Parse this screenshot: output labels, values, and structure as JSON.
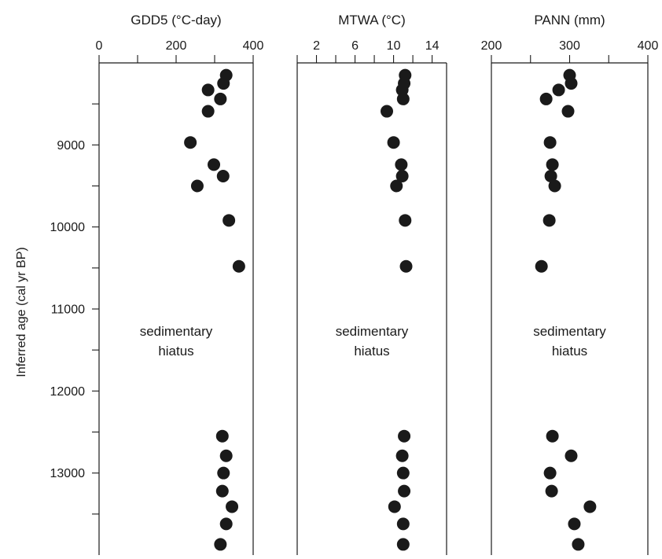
{
  "chart_data": [
    {
      "type": "scatter",
      "title": "GDD5 (°C-day)",
      "ylabel": "Inferred age  (cal yr BP)",
      "xlim": [
        0,
        400
      ],
      "x_ticks": [
        0,
        200,
        400
      ],
      "ylim": [
        8000,
        14000
      ],
      "y_ticks": [
        9000,
        10000,
        11000,
        12000,
        13000
      ],
      "annotation": [
        "sedimentary",
        "hiatus"
      ],
      "points": [
        {
          "x": 330,
          "y": 8150
        },
        {
          "x": 323,
          "y": 8250
        },
        {
          "x": 283,
          "y": 8330
        },
        {
          "x": 315,
          "y": 8440
        },
        {
          "x": 283,
          "y": 8590
        },
        {
          "x": 237,
          "y": 8970
        },
        {
          "x": 298,
          "y": 9240
        },
        {
          "x": 322,
          "y": 9380
        },
        {
          "x": 255,
          "y": 9500
        },
        {
          "x": 337,
          "y": 9920
        },
        {
          "x": 363,
          "y": 10480
        },
        {
          "x": 320,
          "y": 12550
        },
        {
          "x": 330,
          "y": 12790
        },
        {
          "x": 323,
          "y": 13000
        },
        {
          "x": 320,
          "y": 13220
        },
        {
          "x": 345,
          "y": 13410
        },
        {
          "x": 330,
          "y": 13620
        },
        {
          "x": 315,
          "y": 13870
        }
      ]
    },
    {
      "type": "scatter",
      "title": "MTWA (°C)",
      "xlim": [
        0,
        15.5
      ],
      "x_ticks": [
        2,
        6,
        10,
        14
      ],
      "ylim": [
        8000,
        14000
      ],
      "y_ticks": [
        9000,
        10000,
        11000,
        12000,
        13000
      ],
      "annotation": [
        "sedimentary",
        "hiatus"
      ],
      "points": [
        {
          "x": 11.2,
          "y": 8150
        },
        {
          "x": 11.1,
          "y": 8250
        },
        {
          "x": 10.9,
          "y": 8330
        },
        {
          "x": 11.0,
          "y": 8440
        },
        {
          "x": 9.3,
          "y": 8590
        },
        {
          "x": 10.0,
          "y": 8970
        },
        {
          "x": 10.8,
          "y": 9240
        },
        {
          "x": 10.9,
          "y": 9380
        },
        {
          "x": 10.3,
          "y": 9500
        },
        {
          "x": 11.2,
          "y": 9920
        },
        {
          "x": 11.3,
          "y": 10480
        },
        {
          "x": 11.1,
          "y": 12550
        },
        {
          "x": 10.9,
          "y": 12790
        },
        {
          "x": 11.0,
          "y": 13000
        },
        {
          "x": 11.1,
          "y": 13220
        },
        {
          "x": 10.1,
          "y": 13410
        },
        {
          "x": 11.0,
          "y": 13620
        },
        {
          "x": 11.0,
          "y": 13870
        }
      ]
    },
    {
      "type": "scatter",
      "title": "PANN (mm)",
      "xlim": [
        200,
        400
      ],
      "x_ticks": [
        200,
        300,
        400
      ],
      "ylim": [
        8000,
        14000
      ],
      "y_ticks": [
        9000,
        10000,
        11000,
        12000,
        13000
      ],
      "annotation": [
        "sedimentary",
        "hiatus"
      ],
      "points": [
        {
          "x": 300,
          "y": 8150
        },
        {
          "x": 302,
          "y": 8250
        },
        {
          "x": 286,
          "y": 8330
        },
        {
          "x": 270,
          "y": 8440
        },
        {
          "x": 298,
          "y": 8590
        },
        {
          "x": 275,
          "y": 8970
        },
        {
          "x": 278,
          "y": 9240
        },
        {
          "x": 276,
          "y": 9380
        },
        {
          "x": 281,
          "y": 9500
        },
        {
          "x": 274,
          "y": 9920
        },
        {
          "x": 264,
          "y": 10480
        },
        {
          "x": 278,
          "y": 12550
        },
        {
          "x": 302,
          "y": 12790
        },
        {
          "x": 275,
          "y": 13000
        },
        {
          "x": 277,
          "y": 13220
        },
        {
          "x": 326,
          "y": 13410
        },
        {
          "x": 306,
          "y": 13620
        },
        {
          "x": 311,
          "y": 13870
        }
      ]
    }
  ]
}
